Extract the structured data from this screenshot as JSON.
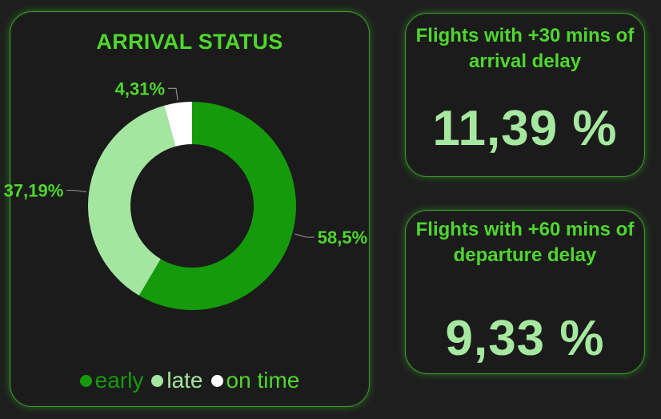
{
  "donut": {
    "title": "ARRIVAL STATUS"
  },
  "kpis": [
    {
      "title": "Flights with +30 mins of arrival delay",
      "value": "11,39 %"
    },
    {
      "title": "Flights with +60 mins of departure delay",
      "value": "9,33 %"
    }
  ],
  "colors": {
    "accent": "#4fd62e",
    "kpi_value": "#a6e8a0",
    "early": "#159a0c",
    "late": "#a4e6a0",
    "on_time": "#ffffff",
    "background": "#1e1e1e",
    "card_border": "#3f9a2f"
  },
  "chart_data": {
    "type": "pie",
    "title": "ARRIVAL STATUS",
    "donut": true,
    "legend_position": "bottom",
    "categories": [
      "early",
      "late",
      "on time"
    ],
    "values": [
      58.5,
      37.19,
      4.31
    ],
    "data_labels": [
      "58,5%",
      "37,19%",
      "4,31%"
    ]
  }
}
